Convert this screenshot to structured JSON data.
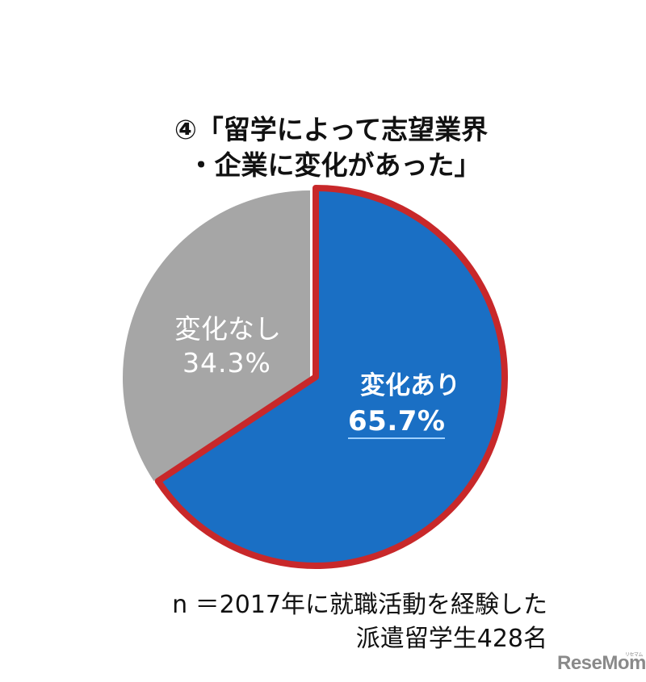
{
  "chart_data": {
    "type": "pie",
    "title": "④「留学によって志望業界・企業に変化があった」",
    "title_lines": [
      "④「留学によって志望業界",
      "・企業に変化があった」"
    ],
    "categories": [
      "変化あり",
      "変化なし"
    ],
    "values": [
      65.7,
      34.3
    ],
    "value_labels": [
      "65.7%",
      "34.3%"
    ],
    "colors": [
      "#1a6fc4",
      "#a6a6a6"
    ],
    "highlight": {
      "category": "変化あり",
      "border_color": "#c8282a",
      "exploded": true
    },
    "start_angle_deg": 0,
    "direction": "clockwise",
    "legend": "none",
    "note": "n ＝2017年に就職活動を経験した派遣留学生428名"
  },
  "labels": {
    "no_change_name": "変化なし",
    "no_change_pct": "34.3%",
    "change_name": "変化あり",
    "change_pct": "65.7%"
  },
  "note_lines": [
    "n ＝2017年に就職活動を経験した",
    "派遣留学生428名"
  ],
  "watermark": {
    "text": "ReseMom",
    "kana": "リセマム"
  }
}
